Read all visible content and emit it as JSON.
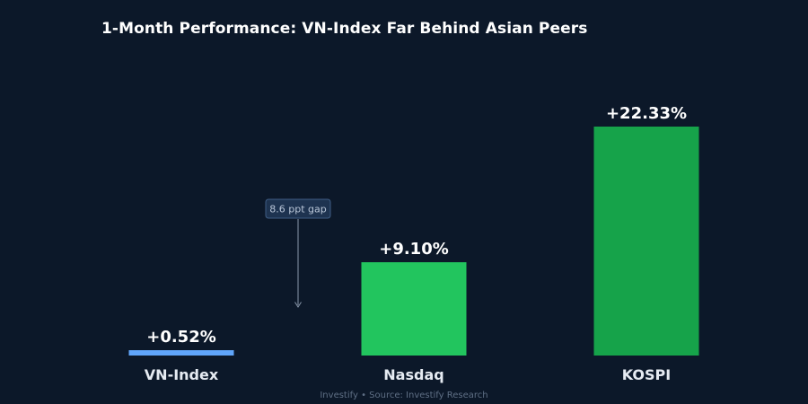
{
  "chart_data": {
    "type": "bar",
    "title": "1-Month Performance: VN-Index Far Behind Asian Peers",
    "categories": [
      "VN-Index",
      "Nasdaq",
      "KOSPI"
    ],
    "values": [
      0.52,
      9.1,
      22.33
    ],
    "value_labels": [
      "+0.52%",
      "+9.10%",
      "+22.33%"
    ],
    "colors": [
      "#60a5fa",
      "#22c55e",
      "#16a34a"
    ],
    "ylim": [
      0,
      25
    ],
    "grid": false,
    "annotation": {
      "text": "8.6 ppt gap"
    }
  },
  "footer": {
    "text": "Investify  •  Source: Investify Research"
  }
}
